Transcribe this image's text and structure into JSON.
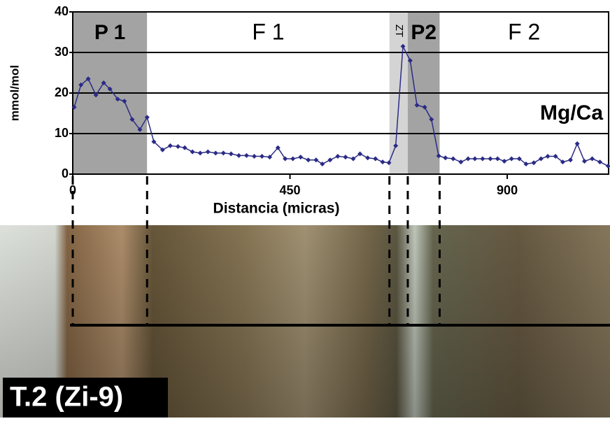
{
  "chart_data": {
    "type": "line",
    "y_label": "mmol/mol",
    "x_label": "Distancia (micras)",
    "series_label": "Mg/Ca",
    "photo_label": "T.2 (Zi-9)",
    "xlim": [
      0,
      1110
    ],
    "xticks": [
      0,
      450,
      900
    ],
    "ylim": [
      0,
      40
    ],
    "yticks": [
      0,
      10,
      20,
      30,
      40
    ],
    "grid": true,
    "zones": [
      {
        "label": "P 1",
        "start": 0,
        "end": 154,
        "color": "#a3a3a3"
      },
      {
        "label": "F 1",
        "start": 154,
        "end": 656,
        "color": "#ffffff"
      },
      {
        "label": "ZT",
        "start": 656,
        "end": 694,
        "color": "#d4d4d4"
      },
      {
        "label": "P2",
        "start": 694,
        "end": 760,
        "color": "#a3a3a3"
      },
      {
        "label": "F 2",
        "start": 760,
        "end": 1110,
        "color": "#ffffff"
      }
    ],
    "series": [
      {
        "name": "Mg/Ca",
        "color": "#2b2b86",
        "x": [
          3,
          17,
          32,
          48,
          64,
          77,
          93,
          107,
          123,
          139,
          154,
          168,
          186,
          202,
          218,
          232,
          248,
          264,
          280,
          296,
          312,
          328,
          344,
          360,
          376,
          392,
          408,
          425,
          440,
          456,
          472,
          488,
          504,
          517,
          533,
          549,
          565,
          581,
          595,
          611,
          627,
          642,
          655,
          669,
          684,
          699,
          713,
          729,
          743,
          758,
          772,
          788,
          804,
          819,
          833,
          849,
          865,
          880,
          894,
          909,
          925,
          939,
          955,
          970,
          984,
          1000,
          1015,
          1031,
          1045,
          1060,
          1076,
          1092,
          1109
        ],
        "values": [
          16.5,
          22,
          23.5,
          19.5,
          22.5,
          21,
          18.5,
          18,
          13.5,
          11,
          14,
          8,
          6,
          7,
          6.8,
          6.5,
          5.5,
          5.2,
          5.5,
          5.2,
          5.2,
          5,
          4.6,
          4.6,
          4.4,
          4.4,
          4.2,
          6.5,
          3.8,
          3.8,
          4.2,
          3.5,
          3.5,
          2.5,
          3.5,
          4.4,
          4.2,
          3.8,
          5,
          4,
          3.8,
          3,
          2.8,
          7,
          31.5,
          28,
          17,
          16.5,
          13.5,
          4.5,
          4,
          3.8,
          3,
          3.8,
          3.8,
          3.8,
          3.8,
          3.8,
          3.2,
          3.8,
          3.8,
          2.5,
          2.8,
          3.8,
          4.4,
          4.4,
          3,
          3.5,
          7.5,
          3.2,
          3.8,
          3,
          2
        ]
      }
    ]
  }
}
